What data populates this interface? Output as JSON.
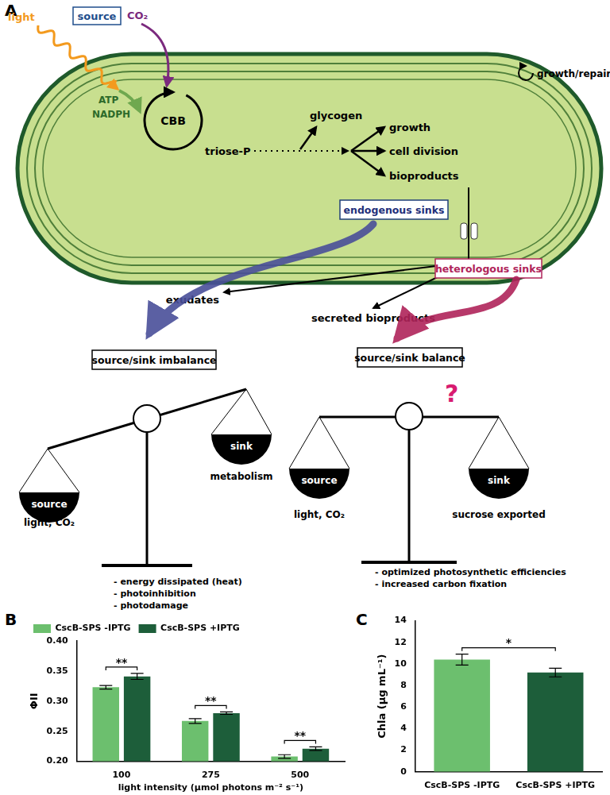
{
  "diagram": {
    "panel": "A",
    "light": "light",
    "source": "source",
    "co2": "CO₂",
    "growth_repair": "growth/repair",
    "atp": "ATP",
    "nadph": "NADPH",
    "cycle": "CBB",
    "triose": "triose-P",
    "glycogen": "glycogen",
    "outputs": [
      "growth",
      "cell division",
      "bioproducts"
    ],
    "endogenous": "endogenous sinks",
    "heterologous": "heterologous sinks",
    "exudates": "exudates",
    "secreted": "secreted bioproducts",
    "imbalance": {
      "title": "source/sink imbalance",
      "source": "source",
      "source_note": "light, CO₂",
      "sink": "sink",
      "sink_note": "metabolism",
      "outcomes": [
        "- energy dissipated (heat)",
        "- photoinhibition",
        "- photodamage"
      ]
    },
    "balance": {
      "title": "source/sink balance",
      "question": "?",
      "source": "source",
      "source_note": "light, CO₂",
      "sink": "sink",
      "sink_note": "sucrose exported",
      "outcomes": [
        "- optimized photosynthetic efficiencies",
        "- increased carbon fixation"
      ]
    }
  },
  "chart_data": [
    {
      "panel": "B",
      "type": "bar",
      "categories": [
        "100",
        "275",
        "500"
      ],
      "x_label": "light intensity (µmol photons m⁻² s⁻¹)",
      "y_label": "ΦII",
      "ylim": [
        0.2,
        0.4
      ],
      "yticks": [
        {
          "value": 0.2,
          "label": "0.20"
        },
        {
          "value": 0.25,
          "label": "0.25"
        },
        {
          "value": 0.3,
          "label": "0.30"
        },
        {
          "value": 0.35,
          "label": "0.35"
        },
        {
          "value": 0.4,
          "label": "0.40"
        }
      ],
      "grid": false,
      "legend": "top left",
      "series": [
        {
          "name": "CscB-SPS -IPTG",
          "color": "#6cbf6e",
          "values": [
            0.323,
            0.267,
            0.208
          ],
          "errors": [
            0.003,
            0.004,
            0.003
          ]
        },
        {
          "name": "CscB-SPS +IPTG",
          "color": "#1d5e3a",
          "values": [
            0.341,
            0.28,
            0.221
          ],
          "errors": [
            0.005,
            0.002,
            0.003
          ]
        }
      ],
      "significance": [
        {
          "category": "100",
          "label": "**"
        },
        {
          "category": "275",
          "label": "**"
        },
        {
          "category": "500",
          "label": "**"
        }
      ]
    },
    {
      "panel": "C",
      "type": "bar",
      "categories": [
        "CscB-SPS -IPTG",
        "CscB-SPS +IPTG"
      ],
      "values": [
        10.4,
        9.2
      ],
      "errors": [
        0.5,
        0.4
      ],
      "colors": [
        "#6cbf6e",
        "#1d5e3a"
      ],
      "y_label": "Chla (µg mL⁻¹)",
      "ylim": [
        0,
        14
      ],
      "yticks": [
        0,
        2,
        4,
        6,
        8,
        10,
        12,
        14
      ],
      "grid": false,
      "significance": [
        {
          "between": [
            "CscB-SPS -IPTG",
            "CscB-SPS +IPTG"
          ],
          "label": "*"
        }
      ]
    }
  ]
}
